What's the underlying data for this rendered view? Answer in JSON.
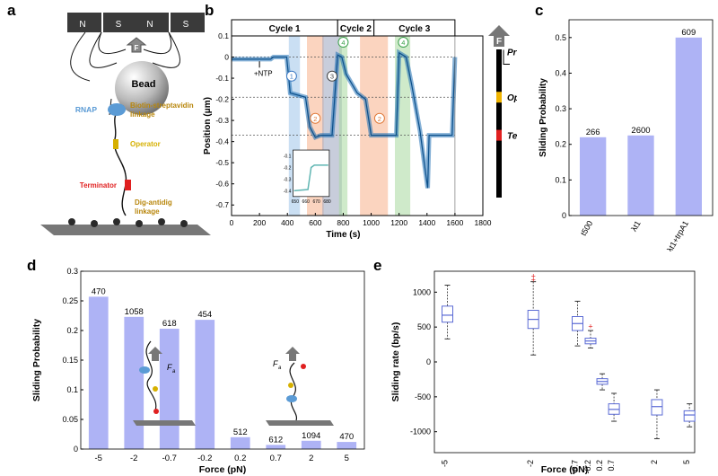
{
  "panels": {
    "a": {
      "label": "a",
      "magnet1": {
        "n": "N",
        "s": "S"
      },
      "magnet2": {
        "n": "N",
        "s": "S"
      },
      "force": "F",
      "bead": "Bead",
      "rnap": "RNAP",
      "biotin": [
        "Biotin-streptavidin",
        "linkage"
      ],
      "operator": "Operator",
      "terminator": "Terminator",
      "dig": [
        "Dig-antidig",
        "linkage"
      ],
      "colors": {
        "operator": "#d6b000",
        "terminator": "#e02020",
        "rnap": "#5b9bd5",
        "linkage_text": "#b8860b"
      }
    },
    "b": {
      "label": "b",
      "cycles": [
        "Cycle 1",
        "Cycle 2",
        "Cycle 3"
      ],
      "annotation": "+NTP",
      "circles": [
        "1",
        "2",
        "3",
        "2",
        "4",
        "4"
      ],
      "positions": [
        "Pr",
        "Op",
        "Ter"
      ],
      "force": "F"
    },
    "c": {
      "label": "c"
    },
    "d": {
      "label": "d",
      "force_a": "F",
      "force_a_sub": "a",
      "force_b": "F",
      "force_b_sub": "a"
    },
    "e": {
      "label": "e"
    }
  },
  "chart_data": [
    {
      "id": "b",
      "type": "line",
      "xlabel": "Time (s)",
      "ylabel": "Position (μm)",
      "xlim": [
        0,
        1800
      ],
      "ylim": [
        -0.75,
        0.1
      ],
      "xticks": [
        0,
        200,
        400,
        600,
        800,
        1000,
        1200,
        1400,
        1600,
        1800
      ],
      "yticks": [
        0.1,
        0,
        -0.1,
        -0.2,
        -0.3,
        -0.4,
        -0.5,
        -0.6,
        -0.7
      ],
      "series": [
        {
          "points": [
            [
              0,
              -0.01
            ],
            [
              280,
              -0.01
            ],
            [
              300,
              0.0
            ],
            [
              395,
              0.0
            ],
            [
              420,
              -0.17
            ],
            [
              530,
              -0.19
            ],
            [
              560,
              -0.33
            ],
            [
              600,
              -0.38
            ],
            [
              640,
              -0.37
            ],
            [
              720,
              -0.37
            ],
            [
              760,
              0.01
            ],
            [
              790,
              0.0
            ],
            [
              820,
              -0.08
            ],
            [
              900,
              -0.17
            ],
            [
              960,
              -0.2
            ],
            [
              1000,
              -0.37
            ],
            [
              1180,
              -0.37
            ],
            [
              1200,
              0.02
            ],
            [
              1250,
              0.0
            ],
            [
              1290,
              -0.13
            ],
            [
              1350,
              -0.35
            ],
            [
              1380,
              -0.5
            ],
            [
              1405,
              -0.62
            ],
            [
              1415,
              -0.37
            ],
            [
              1580,
              -0.37
            ],
            [
              1600,
              0.0
            ]
          ]
        }
      ],
      "dotted_levels": [
        -0.19,
        -0.37
      ],
      "shaded": [
        {
          "x": [
            410,
            490
          ],
          "color": "#9ec5ea"
        },
        {
          "x": [
            540,
            660
          ],
          "color": "#f7b08a"
        },
        {
          "x": [
            650,
            790
          ],
          "color": "#9aa4bd"
        },
        {
          "x": [
            770,
            830
          ],
          "color": "#a7d89e"
        },
        {
          "x": [
            920,
            1120
          ],
          "color": "#f7b08a"
        },
        {
          "x": [
            1170,
            1280
          ],
          "color": "#a7d89e"
        }
      ],
      "inset": {
        "xticks": [
          650,
          660,
          670,
          680
        ],
        "yticks": [
          -0.1,
          -0.2,
          -0.3,
          -0.4
        ],
        "xlim": [
          648,
          682
        ],
        "ylim": [
          -0.45,
          -0.05
        ]
      }
    },
    {
      "id": "c",
      "type": "bar",
      "ylabel": "Sliding Probability",
      "ylim": [
        0,
        0.55
      ],
      "yticks": [
        0,
        0.1,
        0.2,
        0.3,
        0.4,
        0.5
      ],
      "categories": [
        "t500",
        "λt1",
        "λt1+trpA1"
      ],
      "values": [
        0.22,
        0.225,
        0.5
      ],
      "data_labels": [
        "266",
        "2600",
        "609"
      ],
      "color": "#aeb3f5"
    },
    {
      "id": "d",
      "type": "bar",
      "xlabel": "Force (pN)",
      "ylabel": "Sliding Probability",
      "ylim": [
        0,
        0.3
      ],
      "yticks": [
        0,
        0.05,
        0.1,
        0.15,
        0.2,
        0.25,
        0.3
      ],
      "categories": [
        "-5",
        "-2",
        "-0.7",
        "-0.2",
        "0.2",
        "0.7",
        "2",
        "5"
      ],
      "values": [
        0.257,
        0.223,
        0.203,
        0.218,
        0.02,
        0.007,
        0.014,
        0.012
      ],
      "data_labels": [
        "470",
        "1058",
        "618",
        "454",
        "512",
        "612",
        "1094",
        "470"
      ],
      "color": "#aeb3f5"
    },
    {
      "id": "e",
      "type": "box",
      "xlabel": "Force (pN)",
      "ylabel": "Sliding rate (bp/s)",
      "ylim": [
        -1300,
        1300
      ],
      "yticks": [
        1000,
        500,
        0,
        -500,
        -1000
      ],
      "categories": [
        "-5",
        "-2",
        "-0.7",
        "-0.2",
        "0.2",
        "0.7",
        "2",
        "5"
      ],
      "x": [
        -5,
        -2,
        -0.7,
        -0.2,
        0.2,
        0.7,
        2,
        5
      ],
      "boxes": [
        {
          "lo": 330,
          "q1": 570,
          "med": 670,
          "q3": 800,
          "hi": 1100
        },
        {
          "lo": 100,
          "q1": 480,
          "med": 610,
          "q3": 740,
          "hi": 1150,
          "outliers": [
            1180,
            1230
          ]
        },
        {
          "lo": 230,
          "q1": 450,
          "med": 550,
          "q3": 650,
          "hi": 870
        },
        {
          "lo": 200,
          "q1": 260,
          "med": 300,
          "q3": 340,
          "hi": 450,
          "outliers": [
            510
          ]
        },
        {
          "lo": -400,
          "q1": -320,
          "med": -280,
          "q3": -240,
          "hi": -170
        },
        {
          "lo": -850,
          "q1": -750,
          "med": -680,
          "q3": -600,
          "hi": -450
        },
        {
          "lo": -1100,
          "q1": -760,
          "med": -640,
          "q3": -540,
          "hi": -400
        },
        {
          "lo": -930,
          "q1": -850,
          "med": -760,
          "q3": -700,
          "hi": -600
        }
      ]
    }
  ]
}
